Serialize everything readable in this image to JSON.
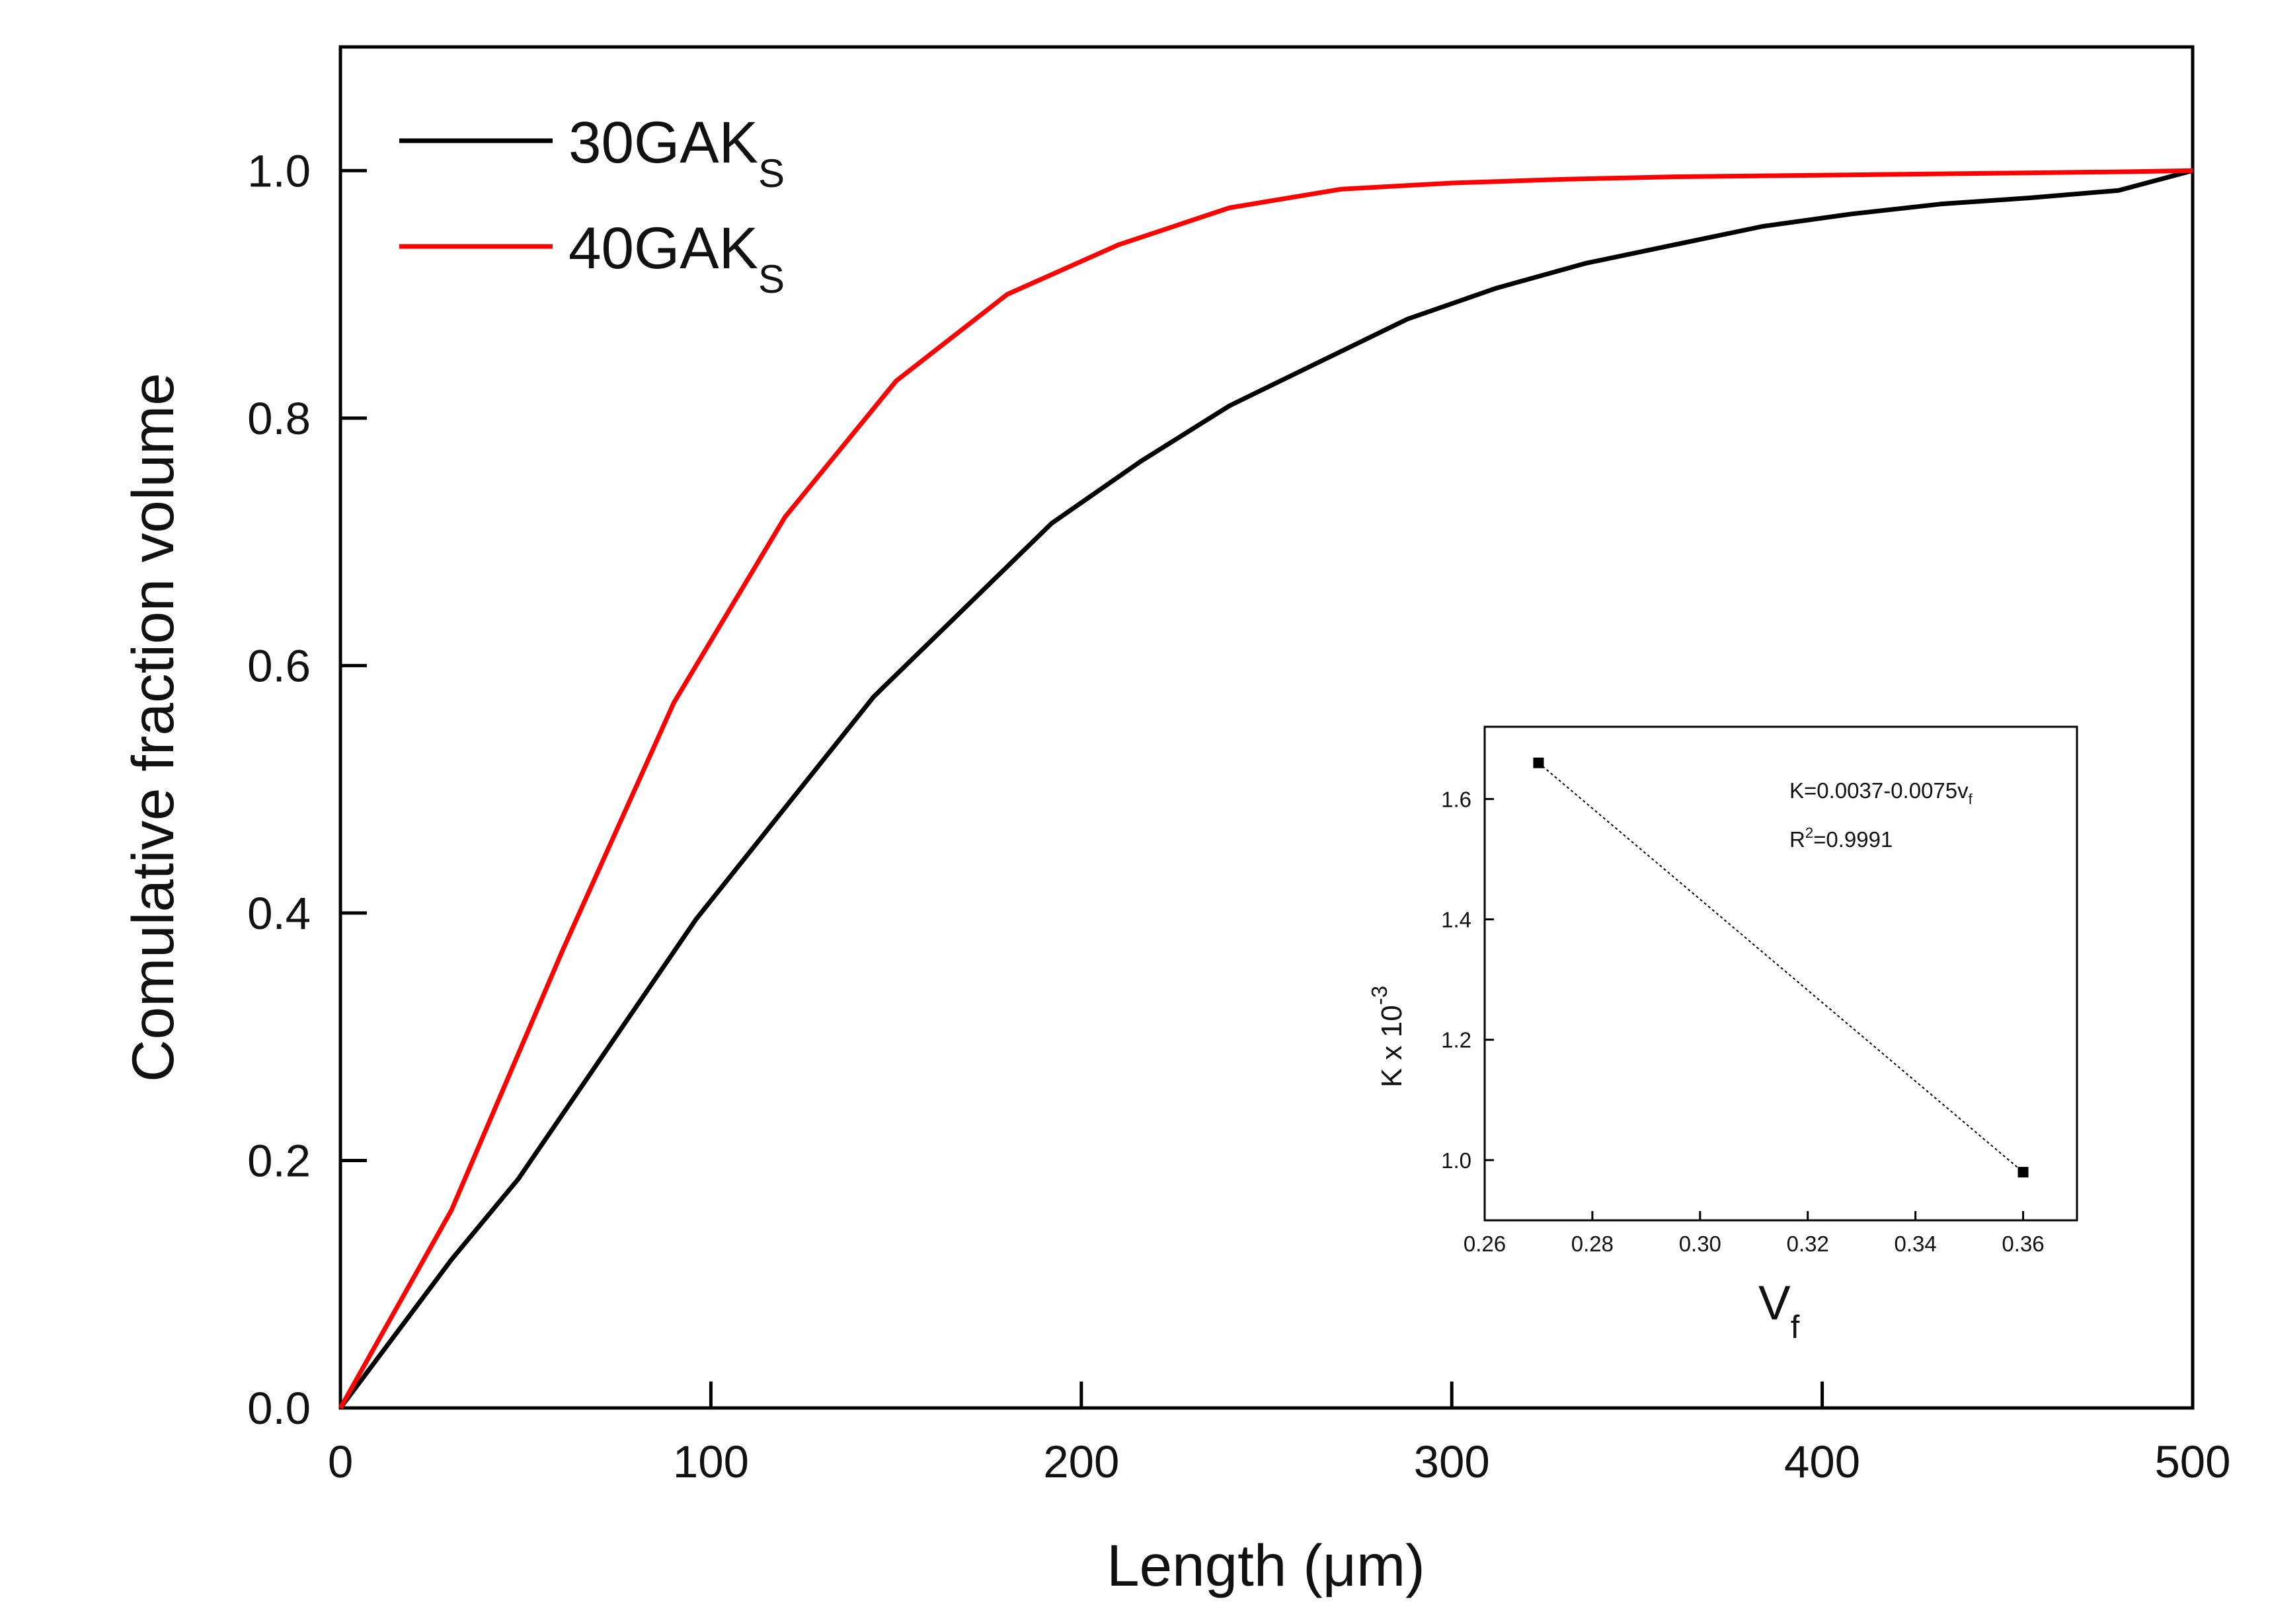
{
  "chart_data": [
    {
      "type": "line",
      "xlabel": "Length (μm)",
      "ylabel": "Comulative fraction volume",
      "xlim": [
        0,
        500
      ],
      "ylim": [
        0,
        1.1
      ],
      "xticks": [
        "0",
        "100",
        "200",
        "300",
        "400",
        "500"
      ],
      "yticks": [
        "0.0",
        "0.2",
        "0.4",
        "0.6",
        "0.8",
        "1.0"
      ],
      "legend_position": "top-left",
      "grid": false,
      "series": [
        {
          "name": "30GAK",
          "name_subscript": "S",
          "color": "#000000",
          "x": [
            0,
            30,
            48,
            72,
            96,
            120,
            144,
            168,
            192,
            216,
            240,
            264,
            288,
            312,
            336,
            360,
            384,
            408,
            432,
            456,
            480,
            500
          ],
          "y": [
            0,
            0.12,
            0.185,
            0.29,
            0.395,
            0.485,
            0.575,
            0.645,
            0.715,
            0.765,
            0.81,
            0.845,
            0.88,
            0.905,
            0.925,
            0.94,
            0.955,
            0.965,
            0.973,
            0.978,
            0.984,
            1.0
          ]
        },
        {
          "name": "40GAK",
          "name_subscript": "S",
          "color": "#ff0000",
          "x": [
            0,
            30,
            60,
            90,
            120,
            150,
            180,
            210,
            240,
            270,
            300,
            330,
            360,
            390,
            420,
            450,
            480,
            500
          ],
          "y": [
            0,
            0.16,
            0.37,
            0.57,
            0.72,
            0.83,
            0.9,
            0.94,
            0.97,
            0.985,
            0.99,
            0.993,
            0.995,
            0.996,
            0.997,
            0.998,
            0.999,
            1.0
          ]
        }
      ]
    },
    {
      "type": "scatter",
      "inset": true,
      "xlabel": "V",
      "xlabel_subscript": "f",
      "ylabel": "K x 10",
      "ylabel_superscript": "-3",
      "xlim": [
        0.26,
        0.37
      ],
      "ylim": [
        0.9,
        1.72
      ],
      "xticks": [
        "0.26",
        "0.28",
        "0.30",
        "0.32",
        "0.34",
        "0.36"
      ],
      "yticks": [
        "1.0",
        "1.2",
        "1.4",
        "1.6"
      ],
      "points": [
        {
          "x": 0.27,
          "y": 1.66
        },
        {
          "x": 0.36,
          "y": 0.98
        }
      ],
      "fit_line": {
        "x": [
          0.27,
          0.36
        ],
        "y": [
          1.66,
          0.98
        ],
        "style": "dotted"
      },
      "equation": {
        "text": "K=0.0037-0.0075v",
        "subscript": "f"
      },
      "r_squared": {
        "prefix": "R",
        "superscript": "2",
        "text": "=0.9991"
      }
    }
  ]
}
